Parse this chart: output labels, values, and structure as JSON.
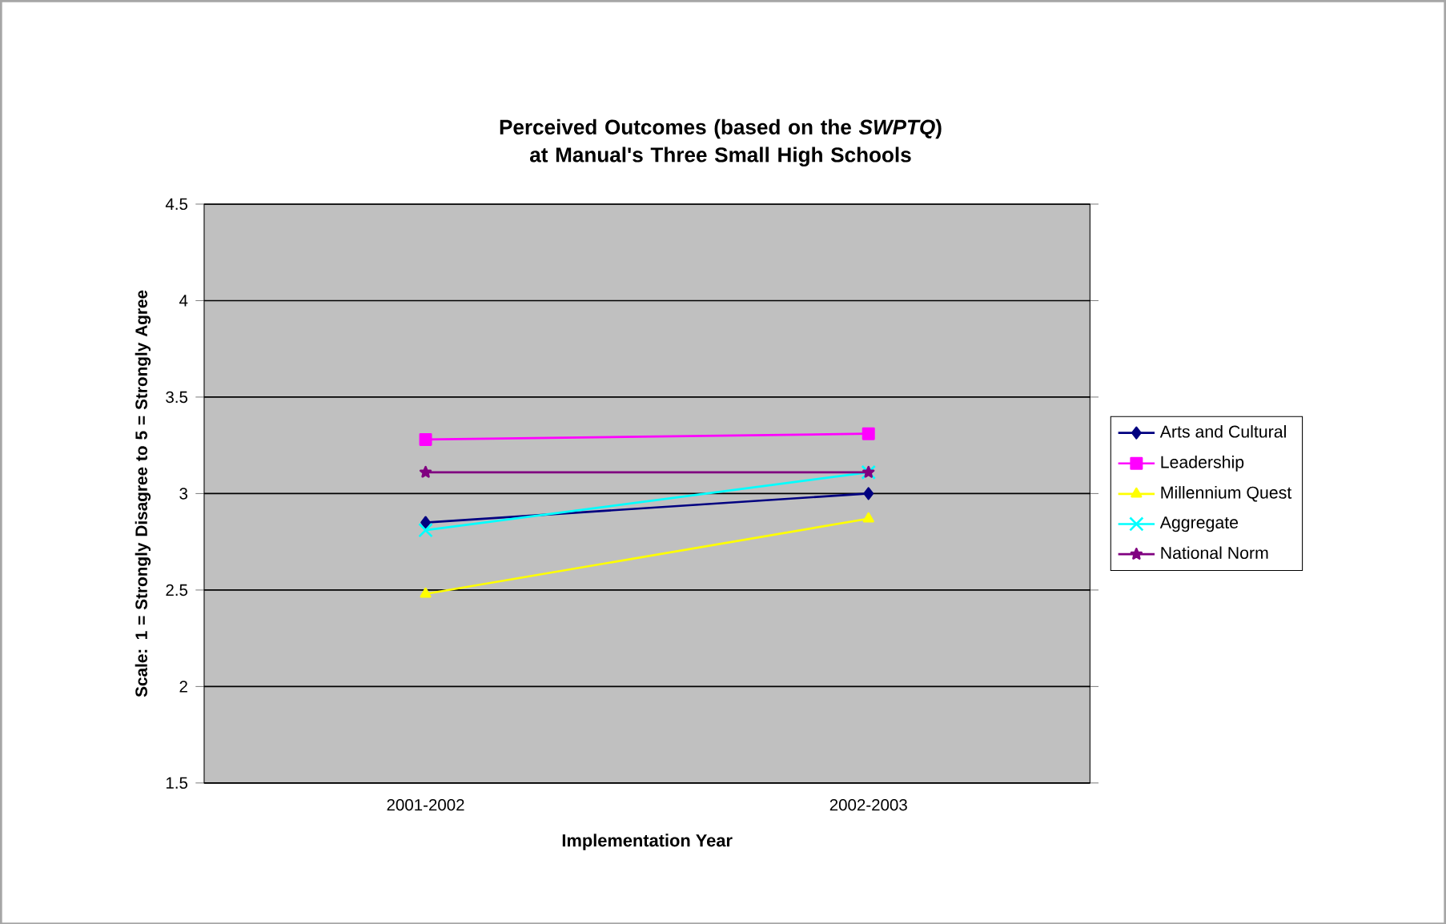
{
  "chart_data": {
    "type": "line",
    "title": "Perceived Outcomes (based on the *SWPTQ*) at Manual's Three Small High Schools",
    "xlabel": "Implementation Year",
    "ylabel": "Scale:  1 = Strongly Disagree to 5 = Strongly Agree",
    "categories": [
      "2001-2002",
      "2002-2003"
    ],
    "series": [
      {
        "name": "Arts and Cultural",
        "color": "#000080",
        "marker": "diamond",
        "values": [
          2.85,
          3.0
        ]
      },
      {
        "name": "Leadership",
        "color": "#ff00ff",
        "marker": "square",
        "values": [
          3.28,
          3.31
        ]
      },
      {
        "name": "Millennium Quest",
        "color": "#ffff00",
        "marker": "triangle",
        "values": [
          2.48,
          2.87
        ]
      },
      {
        "name": "Aggregate",
        "color": "#00ffff",
        "marker": "cross",
        "values": [
          2.81,
          3.11
        ]
      },
      {
        "name": "National Norm",
        "color": "#800080",
        "marker": "star",
        "values": [
          3.11,
          3.11
        ]
      }
    ],
    "ylim": [
      1.5,
      4.5
    ],
    "yticks": [
      1.5,
      2,
      2.5,
      3,
      3.5,
      4,
      4.5
    ],
    "grid": "y",
    "legend": "right"
  }
}
